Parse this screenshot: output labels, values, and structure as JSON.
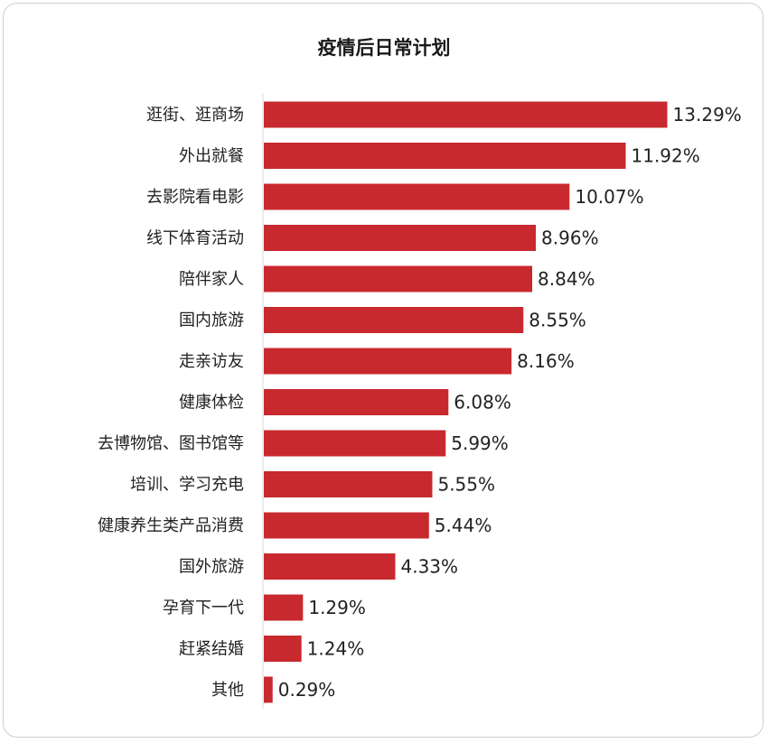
{
  "chart_data": {
    "type": "bar",
    "orientation": "horizontal",
    "title": "疫情后日常计划",
    "categories": [
      "逛街、逛商场",
      "外出就餐",
      "去影院看电影",
      "线下体育活动",
      "陪伴家人",
      "国内旅游",
      "走亲访友",
      "健康体检",
      "去博物馆、图书馆等",
      "培训、学习充电",
      "健康养生类产品消费",
      "国外旅游",
      "孕育下一代",
      "赶紧结婚",
      "其他"
    ],
    "values": [
      13.29,
      11.92,
      10.07,
      8.96,
      8.84,
      8.55,
      8.16,
      6.08,
      5.99,
      5.55,
      5.44,
      4.33,
      1.29,
      1.24,
      0.29
    ],
    "value_labels": [
      "13.29%",
      "11.92%",
      "10.07%",
      "8.96%",
      "8.84%",
      "8.55%",
      "8.16%",
      "6.08%",
      "5.99%",
      "5.55%",
      "5.44%",
      "4.33%",
      "1.29%",
      "1.24%",
      "0.29%"
    ],
    "unit": "%",
    "bar_color": "#c8292f",
    "grid": false,
    "legend": "none"
  }
}
